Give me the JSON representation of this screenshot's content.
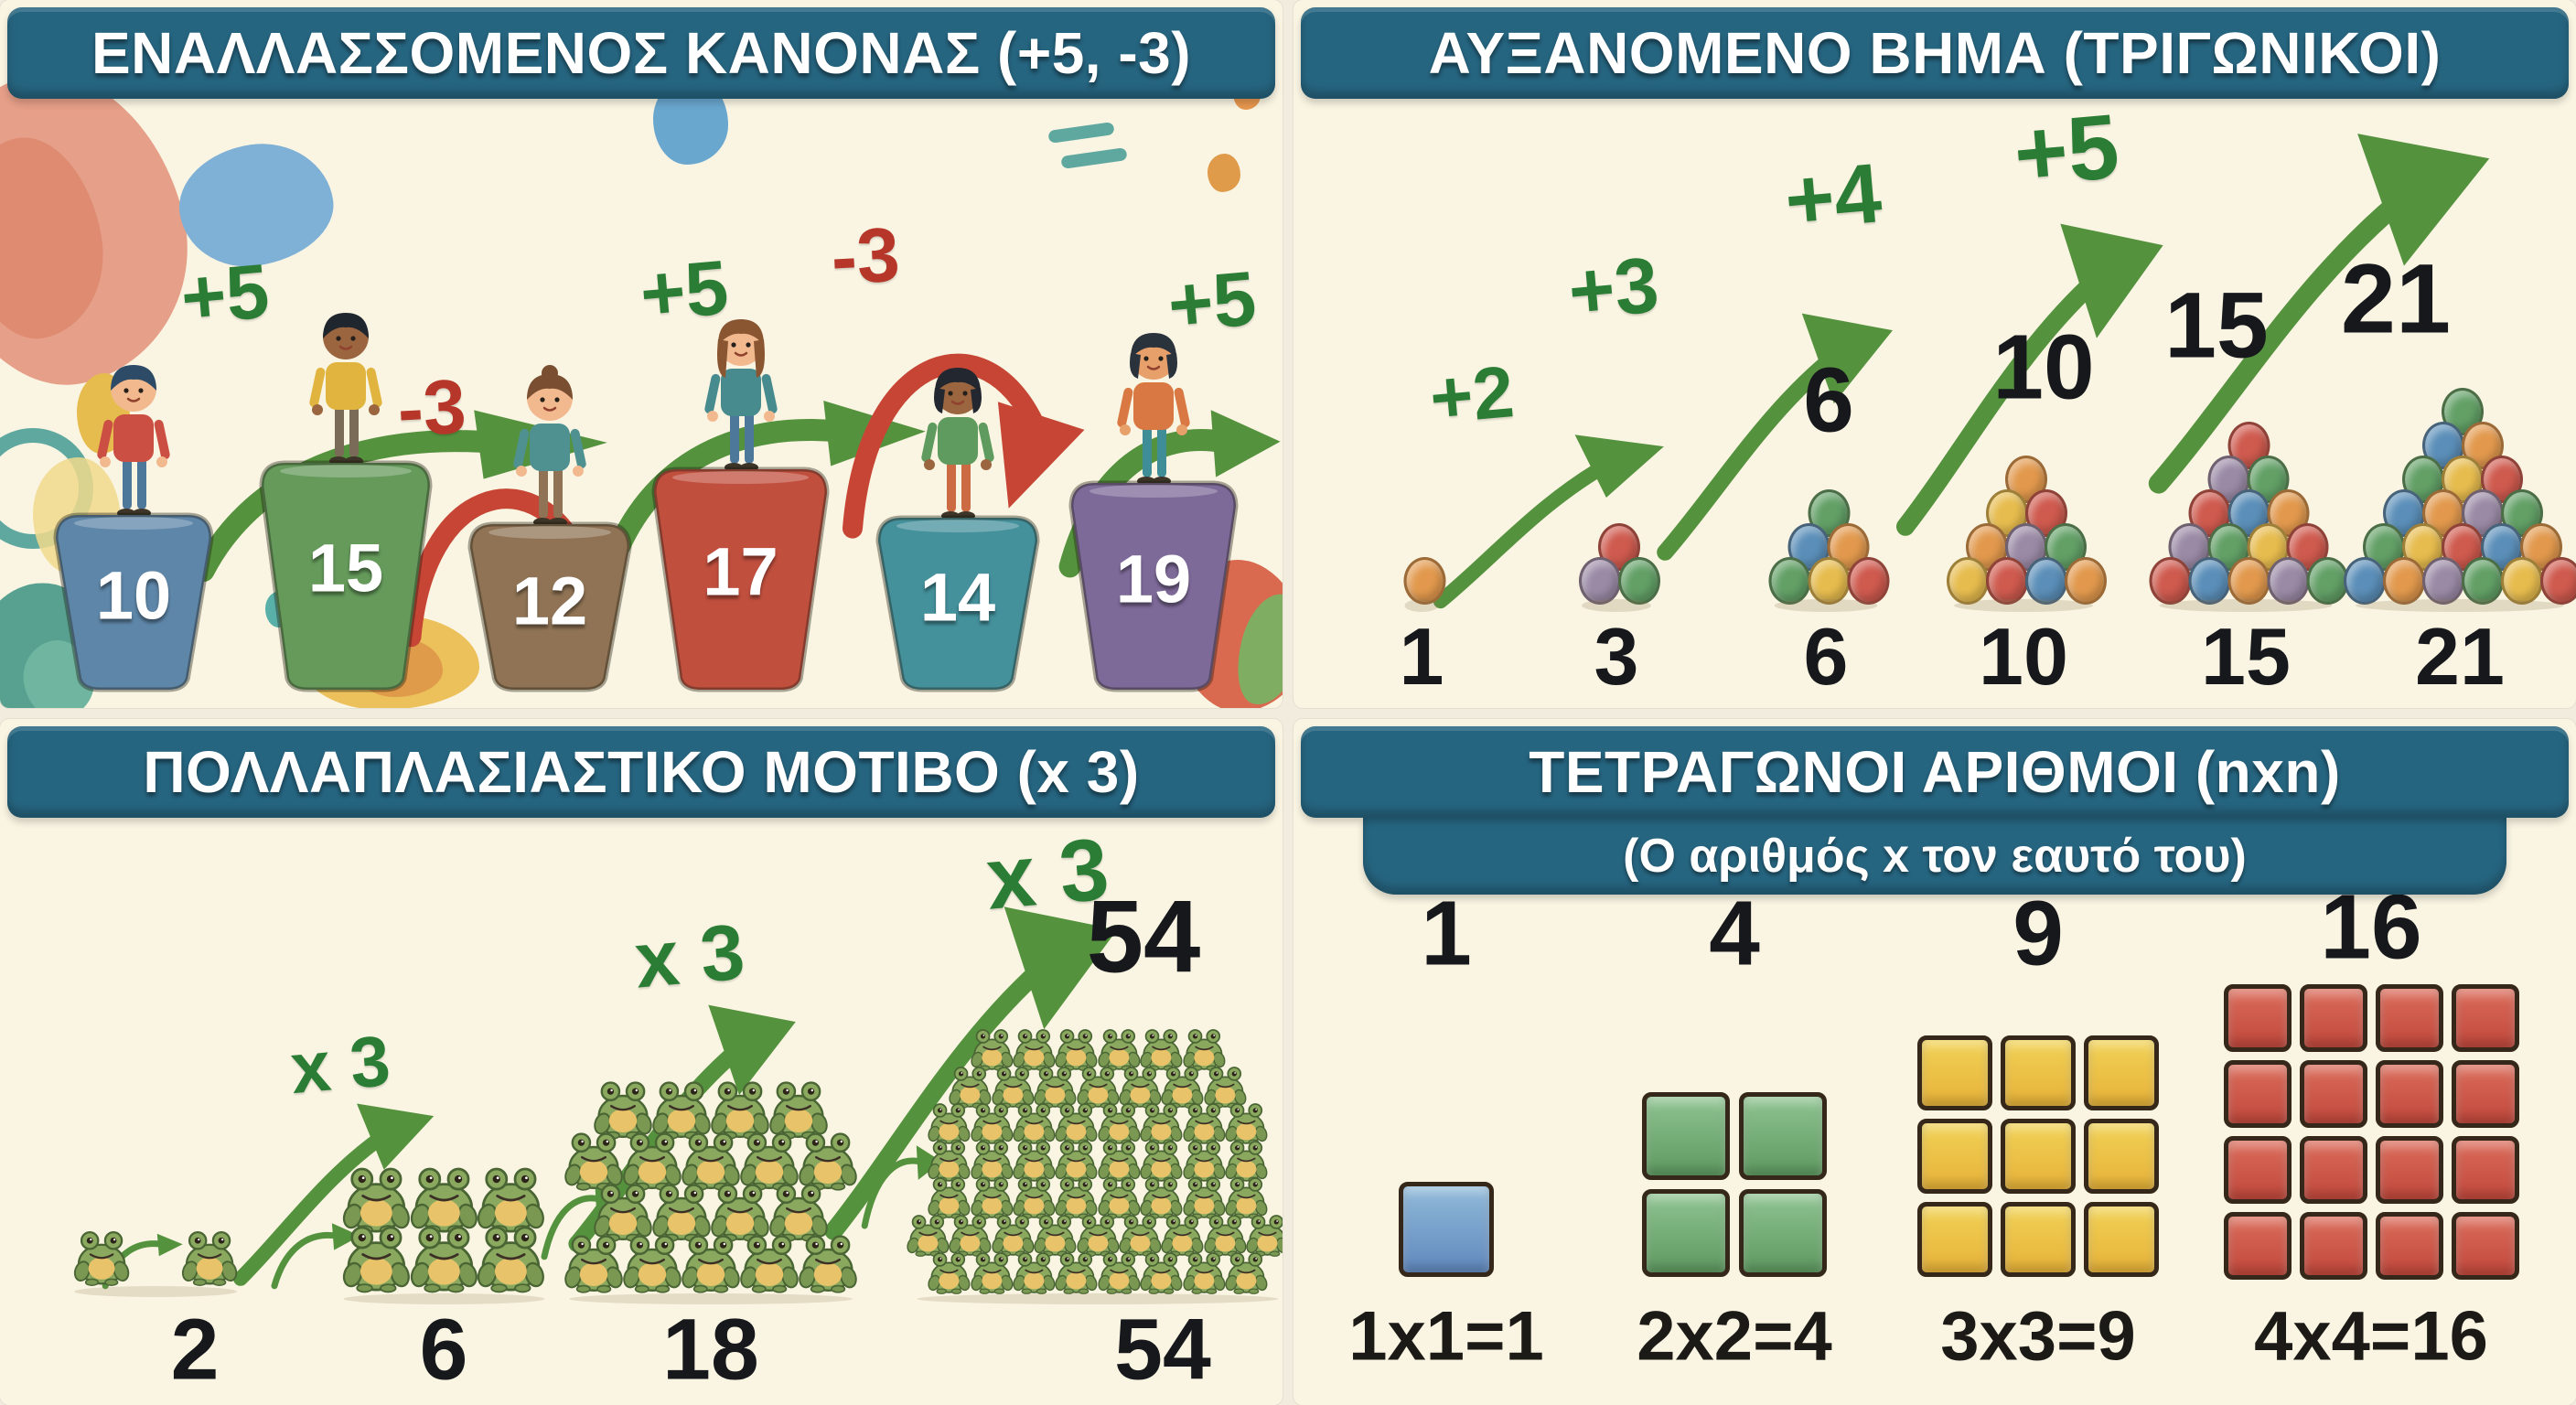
{
  "page": {
    "background": "#f1ecdd",
    "panel_background": "#faf5e3",
    "band_color": "#266580"
  },
  "panels": {
    "alternating": {
      "title": "ΕΝΑΛΛΑΣΣΟΜΕΝΟΣ ΚΑΝΟΝΑΣ (+5, -3)",
      "sequence": [
        10,
        15,
        12,
        17,
        14,
        19
      ],
      "platforms": [
        {
          "value": "10",
          "color": "#5e86a8"
        },
        {
          "value": "15",
          "color": "#659a5b"
        },
        {
          "value": "12",
          "color": "#8f7354"
        },
        {
          "value": "17",
          "color": "#c14f3e"
        },
        {
          "value": "14",
          "color": "#44909b"
        },
        {
          "value": "19",
          "color": "#7e6a99"
        }
      ],
      "arrows": [
        {
          "label": "+5",
          "direction": "up"
        },
        {
          "label": "-3",
          "direction": "down"
        },
        {
          "label": "+5",
          "direction": "up"
        },
        {
          "label": "-3",
          "direction": "down"
        },
        {
          "label": "+5",
          "direction": "up"
        }
      ],
      "kids": [
        {
          "hair": "#2d4a66",
          "skin": "#f2b98f",
          "shirt": "#cc4f43",
          "pants": "#4d7899",
          "style": "short"
        },
        {
          "hair": "#20262e",
          "skin": "#9a653f",
          "shirt": "#e0b43f",
          "pants": "#7a6a58",
          "style": "short"
        },
        {
          "hair": "#7a4e30",
          "skin": "#f2b98f",
          "shirt": "#4f9191",
          "pants": "#8f7354",
          "style": "bun"
        },
        {
          "hair": "#8a5631",
          "skin": "#f2b98f",
          "shirt": "#478b8f",
          "pants": "#4d7899",
          "style": "long"
        },
        {
          "hair": "#23272f",
          "skin": "#9a653f",
          "shirt": "#5f9b5e",
          "pants": "#cc6a43",
          "style": "bob"
        },
        {
          "hair": "#2a323c",
          "skin": "#e8a06b",
          "shirt": "#d97843",
          "pants": "#3f8d96",
          "style": "bob"
        }
      ]
    },
    "triangular": {
      "title": "ΑΥΞΑΝΟΜΕΝΟ ΒΗΜΑ (ΤΡΙΓΩΝΙΚΟΙ)",
      "step_labels": [
        "+2",
        "+3",
        "+4",
        "+5"
      ],
      "top_values": [
        "6",
        "10",
        "15",
        "21"
      ],
      "bottom_values": [
        "1",
        "3",
        "6",
        "10",
        "15",
        "21"
      ],
      "counts": [
        1,
        3,
        6,
        10,
        15,
        21
      ]
    },
    "multiplicative": {
      "title": "ΠΟΛΛΑΠΛΑΣΙΑΣΤΙΚΟ ΜΟΤΙΒΟ (x 3)",
      "step_labels": [
        "x 3",
        "x 3",
        "x 3"
      ],
      "top_value": "54",
      "bottom_values": [
        "2",
        "6",
        "18",
        "54"
      ],
      "counts": [
        2,
        6,
        18,
        54
      ]
    },
    "squares": {
      "title": "ΤΕΤΡΑΓΩΝΟΙ ΑΡΙΘΜΟΙ (nxn)",
      "subtitle": "(Ο αριθμός x τον εαυτό του)",
      "items": [
        {
          "value": "1",
          "n": 1,
          "color": "#6b94c4",
          "equation": "1x1=1"
        },
        {
          "value": "4",
          "n": 2,
          "color": "#69a36b",
          "equation": "2x2=4"
        },
        {
          "value": "9",
          "n": 3,
          "color": "#e9b93f",
          "equation": "3x3=9"
        },
        {
          "value": "16",
          "n": 4,
          "color": "#c75043",
          "equation": "4x4=16"
        }
      ]
    }
  },
  "colors": {
    "arrow_green": "#55923e",
    "arrow_red": "#c64534",
    "label_green": "#2b7d35",
    "label_red": "#b63729",
    "number_black": "#17181c",
    "ball_palette": [
      "#e2994d",
      "#5b8fb9",
      "#cf5a4e",
      "#e7bc4e",
      "#62a066",
      "#9b8aa6"
    ],
    "frog_body": "#8aa95e",
    "frog_belly": "#e9c36a",
    "frog_limb": "#7a9852",
    "frog_line": "#4a6534"
  }
}
